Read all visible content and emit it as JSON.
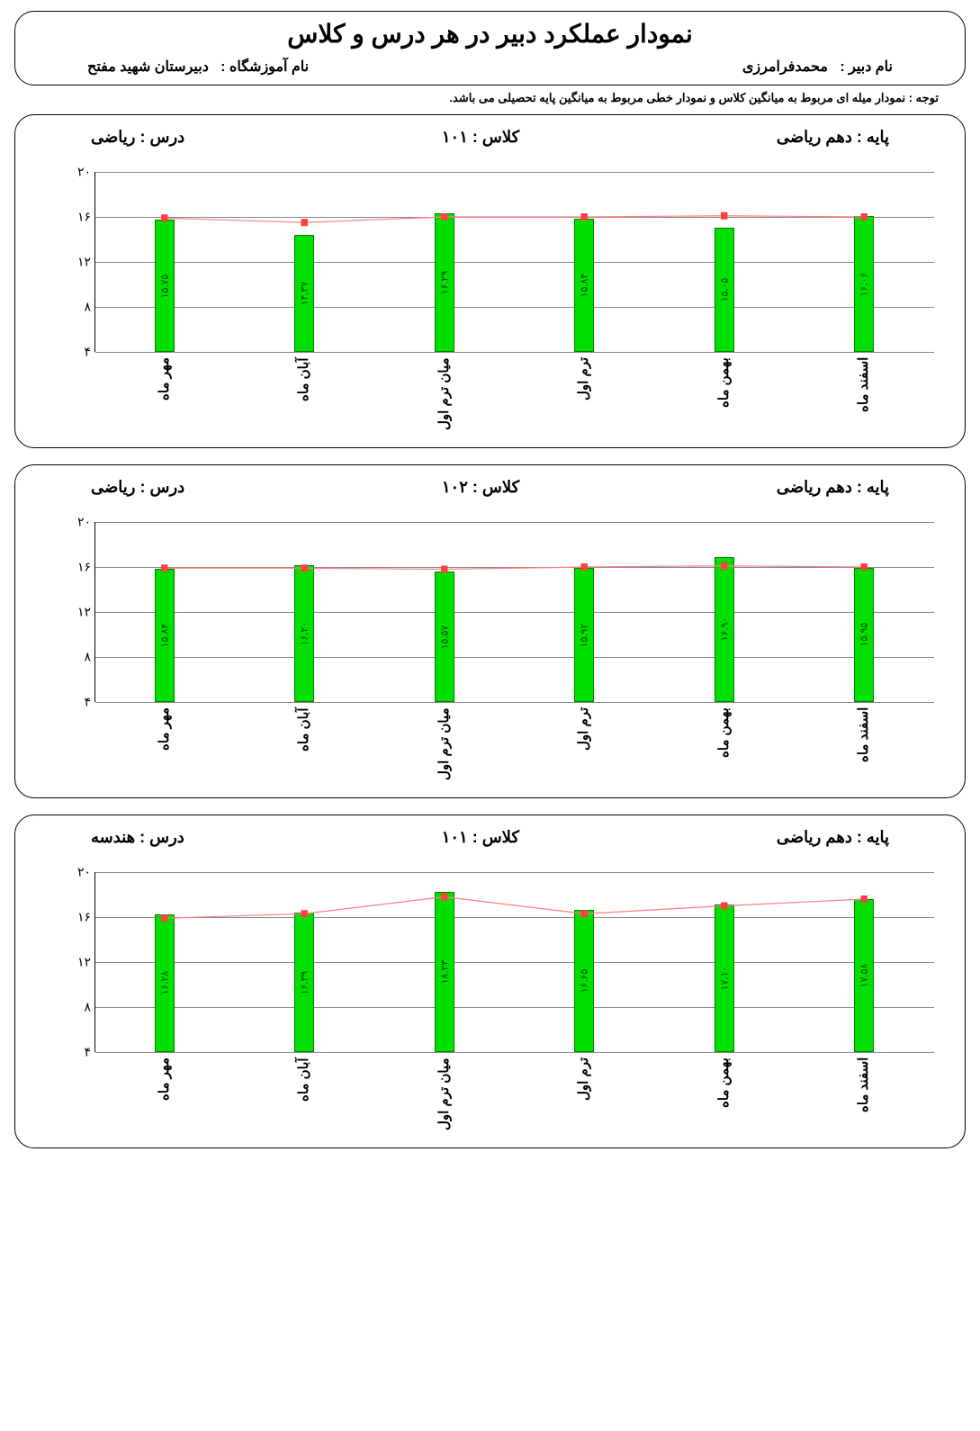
{
  "header": {
    "title": "نمودار عملکرد دبیر در هر درس و کلاس",
    "teacher_label": "نام دبیر :",
    "teacher_name": "محمدفرامرزی",
    "school_label": "نام آموزشگاه :",
    "school_name": "دبیرستان شهید مفتح"
  },
  "note": "توجه : نمودار میله ای مربوط به میانگین کلاس و  نمودار خطی مربوط به میانگین پایه تحصیلی می باشد.",
  "y_axis": {
    "min": 4,
    "max": 20,
    "ticks": [
      4,
      8,
      12,
      16,
      20
    ],
    "tick_labels": [
      "۴",
      "۸",
      "۱۲",
      "۱۶",
      "۲۰"
    ]
  },
  "x_categories": [
    "مهر ماه",
    "آبان ماه",
    "میان ترم اول",
    "ترم اول",
    "بهمن ماه",
    "اسفند ماه"
  ],
  "colors": {
    "bar_fill": "#00e000",
    "bar_stroke": "#008000",
    "line_stroke": "#ff8080",
    "marker_fill": "#ff4040",
    "grid": "#888888",
    "text": "#000000",
    "background": "#ffffff"
  },
  "charts": [
    {
      "grade_label": "پایه :",
      "grade": "دهم ریاضی",
      "class_label": "کلاس :",
      "class": "۱۰۱",
      "subject_label": "درس :",
      "subject": "ریاضی",
      "bars": [
        15.75,
        14.37,
        16.29,
        15.84,
        15.05,
        16.06
      ],
      "bar_labels": [
        "۱۵.۷۵",
        "۱۴.۳۷",
        "۱۶.۲۹",
        "۱۵.۸۴",
        "۱۵.۰۵",
        "۱۶.۰۶"
      ],
      "line": [
        15.9,
        15.5,
        16.0,
        16.0,
        16.1,
        16.0
      ]
    },
    {
      "grade_label": "پایه :",
      "grade": "دهم ریاضی",
      "class_label": "کلاس :",
      "class": "۱۰۲",
      "subject_label": "درس :",
      "subject": "ریاضی",
      "bars": [
        15.84,
        16.2,
        15.57,
        15.92,
        16.9,
        15.95
      ],
      "bar_labels": [
        "۱۵.۸۴",
        "۱۶.۲۰",
        "۱۵.۵۷",
        "۱۵.۹۲",
        "۱۶.۹۰",
        "۱۵.۹۵"
      ],
      "line": [
        15.9,
        15.9,
        15.8,
        16.0,
        16.1,
        16.0
      ]
    },
    {
      "grade_label": "پایه :",
      "grade": "دهم ریاضی",
      "class_label": "کلاس :",
      "class": "۱۰۱",
      "subject_label": "درس :",
      "subject": "هندسه",
      "bars": [
        16.28,
        16.39,
        18.23,
        16.65,
        17.1,
        17.58
      ],
      "bar_labels": [
        "۱۶.۲۸",
        "۱۶.۳۹",
        "۱۸.۲۳",
        "۱۶.۶۵",
        "۱۷.۱۰",
        "۱۷.۵۸"
      ],
      "line": [
        15.9,
        16.3,
        17.8,
        16.3,
        17.0,
        17.6
      ]
    }
  ]
}
